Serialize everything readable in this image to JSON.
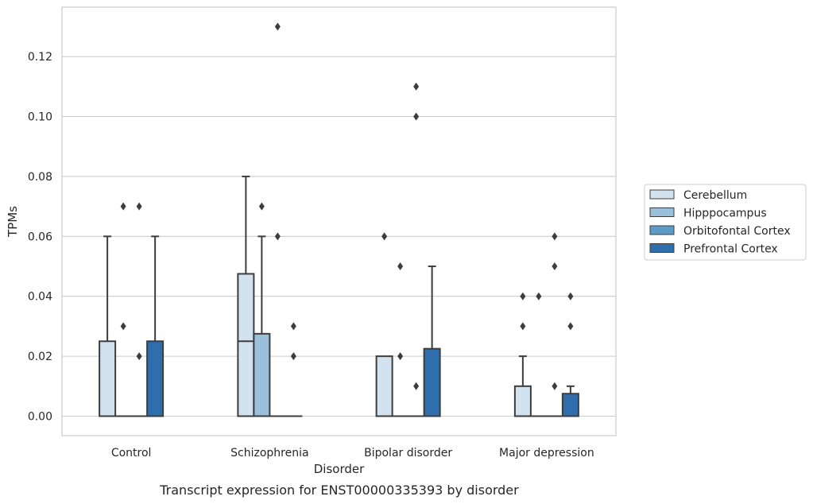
{
  "caption": "Transcript expression for ENST00000335393 by disorder",
  "chart_data": {
    "type": "box",
    "xlabel": "Disorder",
    "ylabel": "TPMs",
    "ylim": [
      -0.0065,
      0.1365
    ],
    "yticks": [
      "0.00",
      "0.02",
      "0.04",
      "0.06",
      "0.08",
      "0.10",
      "0.12"
    ],
    "grid": "horizontal",
    "legend_position": "right",
    "categories": [
      "Control",
      "Schizophrenia",
      "Bipolar disorder",
      "Major depression"
    ],
    "series": [
      {
        "name": "Cerebellum",
        "color": "#d3e2ef",
        "boxes": [
          {
            "q1": 0.0,
            "median": 0.0,
            "q3": 0.025,
            "whislo": 0.0,
            "whishi": 0.06,
            "fliers": []
          },
          {
            "q1": 0.0,
            "median": 0.025,
            "q3": 0.0475,
            "whislo": 0.0,
            "whishi": 0.08,
            "fliers": []
          },
          {
            "q1": 0.0,
            "median": 0.0,
            "q3": 0.02,
            "whislo": 0.0,
            "whishi": 0.02,
            "fliers": [
              0.06
            ]
          },
          {
            "q1": 0.0,
            "median": 0.0,
            "q3": 0.01,
            "whislo": 0.0,
            "whishi": 0.02,
            "fliers": [
              0.03,
              0.04
            ]
          }
        ]
      },
      {
        "name": "Hipppocampus",
        "color": "#9ac0dc",
        "boxes": [
          {
            "q1": 0.0,
            "median": 0.0,
            "q3": 0.0,
            "whislo": 0.0,
            "whishi": 0.0,
            "fliers": [
              0.03,
              0.07
            ]
          },
          {
            "q1": 0.0,
            "median": 0.0,
            "q3": 0.0275,
            "whislo": 0.0,
            "whishi": 0.06,
            "fliers": [
              0.07
            ]
          },
          {
            "q1": 0.0,
            "median": 0.0,
            "q3": 0.0,
            "whislo": 0.0,
            "whishi": 0.0,
            "fliers": [
              0.02,
              0.05
            ]
          },
          {
            "q1": 0.0,
            "median": 0.0,
            "q3": 0.0,
            "whislo": 0.0,
            "whishi": 0.0,
            "fliers": [
              0.04
            ]
          }
        ]
      },
      {
        "name": "Orbitofontal Cortex",
        "color": "#5c9bc8",
        "boxes": [
          {
            "q1": 0.0,
            "median": 0.0,
            "q3": 0.0,
            "whislo": 0.0,
            "whishi": 0.0,
            "fliers": [
              0.02,
              0.07
            ]
          },
          {
            "q1": 0.0,
            "median": 0.0,
            "q3": 0.0,
            "whislo": 0.0,
            "whishi": 0.0,
            "fliers": [
              0.06,
              0.13
            ]
          },
          {
            "q1": 0.0,
            "median": 0.0,
            "q3": 0.0,
            "whislo": 0.0,
            "whishi": 0.0,
            "fliers": [
              0.01,
              0.1,
              0.11
            ]
          },
          {
            "q1": 0.0,
            "median": 0.0,
            "q3": 0.0,
            "whislo": 0.0,
            "whishi": 0.0,
            "fliers": [
              0.01,
              0.05,
              0.06
            ]
          }
        ]
      },
      {
        "name": "Prefrontal Cortex",
        "color": "#2f6eac",
        "boxes": [
          {
            "q1": 0.0,
            "median": 0.0,
            "q3": 0.025,
            "whislo": 0.0,
            "whishi": 0.06,
            "fliers": []
          },
          {
            "q1": 0.0,
            "median": 0.0,
            "q3": 0.0,
            "whislo": 0.0,
            "whishi": 0.0,
            "fliers": [
              0.02,
              0.03
            ]
          },
          {
            "q1": 0.0,
            "median": 0.0,
            "q3": 0.0225,
            "whislo": 0.0,
            "whishi": 0.05,
            "fliers": []
          },
          {
            "q1": 0.0,
            "median": 0.0,
            "q3": 0.0075,
            "whislo": 0.0,
            "whishi": 0.01,
            "fliers": [
              0.03,
              0.04
            ]
          }
        ]
      }
    ]
  }
}
